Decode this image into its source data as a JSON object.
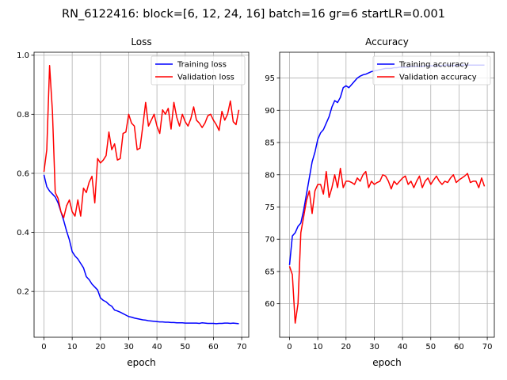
{
  "figure": {
    "suptitle": "RN_6122416: block=[6, 12, 24, 16] batch=16 gr=6 startLR=0.001"
  },
  "chart_data": [
    {
      "type": "line",
      "title": "Loss",
      "xlabel": "epoch",
      "ylabel": "",
      "xlim": [
        -3.5,
        72.5
      ],
      "ylim": [
        0.045,
        1.01
      ],
      "xticks": [
        0,
        10,
        20,
        30,
        40,
        50,
        60,
        70
      ],
      "yticks": [
        0.2,
        0.4,
        0.6,
        0.8,
        1.0
      ],
      "ytick_labels": [
        "0.2",
        "0.4",
        "0.6",
        "0.8",
        "1.0"
      ],
      "grid": true,
      "legend_position": "top-right",
      "series": [
        {
          "name": "Training loss",
          "color": "#0000ff",
          "values": [
            0.595,
            0.555,
            0.54,
            0.53,
            0.52,
            0.5,
            0.47,
            0.44,
            0.405,
            0.375,
            0.335,
            0.32,
            0.31,
            0.295,
            0.28,
            0.25,
            0.24,
            0.225,
            0.215,
            0.205,
            0.178,
            0.17,
            0.165,
            0.156,
            0.15,
            0.137,
            0.134,
            0.13,
            0.125,
            0.12,
            0.115,
            0.113,
            0.11,
            0.108,
            0.106,
            0.104,
            0.103,
            0.101,
            0.1,
            0.099,
            0.098,
            0.097,
            0.097,
            0.096,
            0.096,
            0.095,
            0.095,
            0.094,
            0.094,
            0.094,
            0.093,
            0.093,
            0.093,
            0.093,
            0.093,
            0.092,
            0.094,
            0.093,
            0.092,
            0.092,
            0.092,
            0.091,
            0.092,
            0.092,
            0.093,
            0.093,
            0.092,
            0.093,
            0.092,
            0.091
          ]
        },
        {
          "name": "Validation loss",
          "color": "#ff0000",
          "values": [
            0.605,
            0.68,
            0.965,
            0.81,
            0.535,
            0.515,
            0.47,
            0.45,
            0.49,
            0.51,
            0.47,
            0.455,
            0.51,
            0.455,
            0.55,
            0.535,
            0.57,
            0.59,
            0.5,
            0.65,
            0.635,
            0.645,
            0.66,
            0.74,
            0.68,
            0.7,
            0.645,
            0.65,
            0.735,
            0.74,
            0.8,
            0.77,
            0.76,
            0.68,
            0.685,
            0.76,
            0.84,
            0.76,
            0.78,
            0.8,
            0.76,
            0.735,
            0.815,
            0.8,
            0.82,
            0.75,
            0.84,
            0.79,
            0.76,
            0.8,
            0.775,
            0.76,
            0.785,
            0.825,
            0.78,
            0.77,
            0.755,
            0.77,
            0.795,
            0.8,
            0.78,
            0.765,
            0.745,
            0.81,
            0.78,
            0.8,
            0.845,
            0.775,
            0.765,
            0.815
          ]
        }
      ]
    },
    {
      "type": "line",
      "title": "Accuracy",
      "xlabel": "epoch",
      "ylabel": "",
      "xlim": [
        -3.5,
        72.5
      ],
      "ylim": [
        54.8,
        99.0
      ],
      "xticks": [
        0,
        10,
        20,
        30,
        40,
        50,
        60,
        70
      ],
      "yticks": [
        60,
        65,
        70,
        75,
        80,
        85,
        90,
        95
      ],
      "ytick_labels": [
        "60",
        "65",
        "70",
        "75",
        "80",
        "85",
        "90",
        "95"
      ],
      "grid": true,
      "legend_position": "top-right",
      "series": [
        {
          "name": "Training accuracy",
          "color": "#0000ff",
          "values": [
            66.0,
            70.5,
            71.0,
            72.0,
            72.5,
            74.5,
            77.0,
            79.5,
            82.0,
            83.5,
            85.5,
            86.5,
            87.0,
            88.0,
            89.0,
            90.5,
            91.5,
            91.2,
            92.0,
            93.5,
            93.8,
            93.5,
            94.0,
            94.5,
            95.0,
            95.3,
            95.5,
            95.6,
            95.8,
            96.0,
            96.1,
            96.2,
            96.3,
            96.4,
            96.5,
            96.5,
            96.5,
            96.6,
            96.6,
            96.7,
            96.7,
            96.7,
            96.7,
            96.8,
            96.8,
            96.8,
            96.8,
            96.8,
            96.9,
            96.9,
            96.9,
            96.9,
            96.9,
            96.9,
            96.9,
            97.0,
            97.0,
            97.0,
            96.9,
            97.0,
            97.0,
            97.0,
            97.0,
            97.0,
            97.0,
            97.0,
            97.0,
            97.0,
            97.0,
            97.0
          ]
        },
        {
          "name": "Validation accuracy",
          "color": "#ff0000",
          "values": [
            65.8,
            64.5,
            57.0,
            60.0,
            71.0,
            73.5,
            76.0,
            77.5,
            74.0,
            77.5,
            78.5,
            78.5,
            77.0,
            80.5,
            76.5,
            78.0,
            80.0,
            78.0,
            81.0,
            78.0,
            79.0,
            79.0,
            78.8,
            78.5,
            79.5,
            79.0,
            80.0,
            80.5,
            78.0,
            79.0,
            78.5,
            78.8,
            79.0,
            80.0,
            79.8,
            79.0,
            77.8,
            79.0,
            78.5,
            79.0,
            79.5,
            79.8,
            78.5,
            79.0,
            78.0,
            79.0,
            79.8,
            78.0,
            79.0,
            79.5,
            78.5,
            79.2,
            79.8,
            79.0,
            78.5,
            79.0,
            78.8,
            79.5,
            80.0,
            78.8,
            79.2,
            79.5,
            79.8,
            80.2,
            78.8,
            79.0,
            79.0,
            78.0,
            79.5,
            78.2
          ]
        }
      ]
    }
  ]
}
